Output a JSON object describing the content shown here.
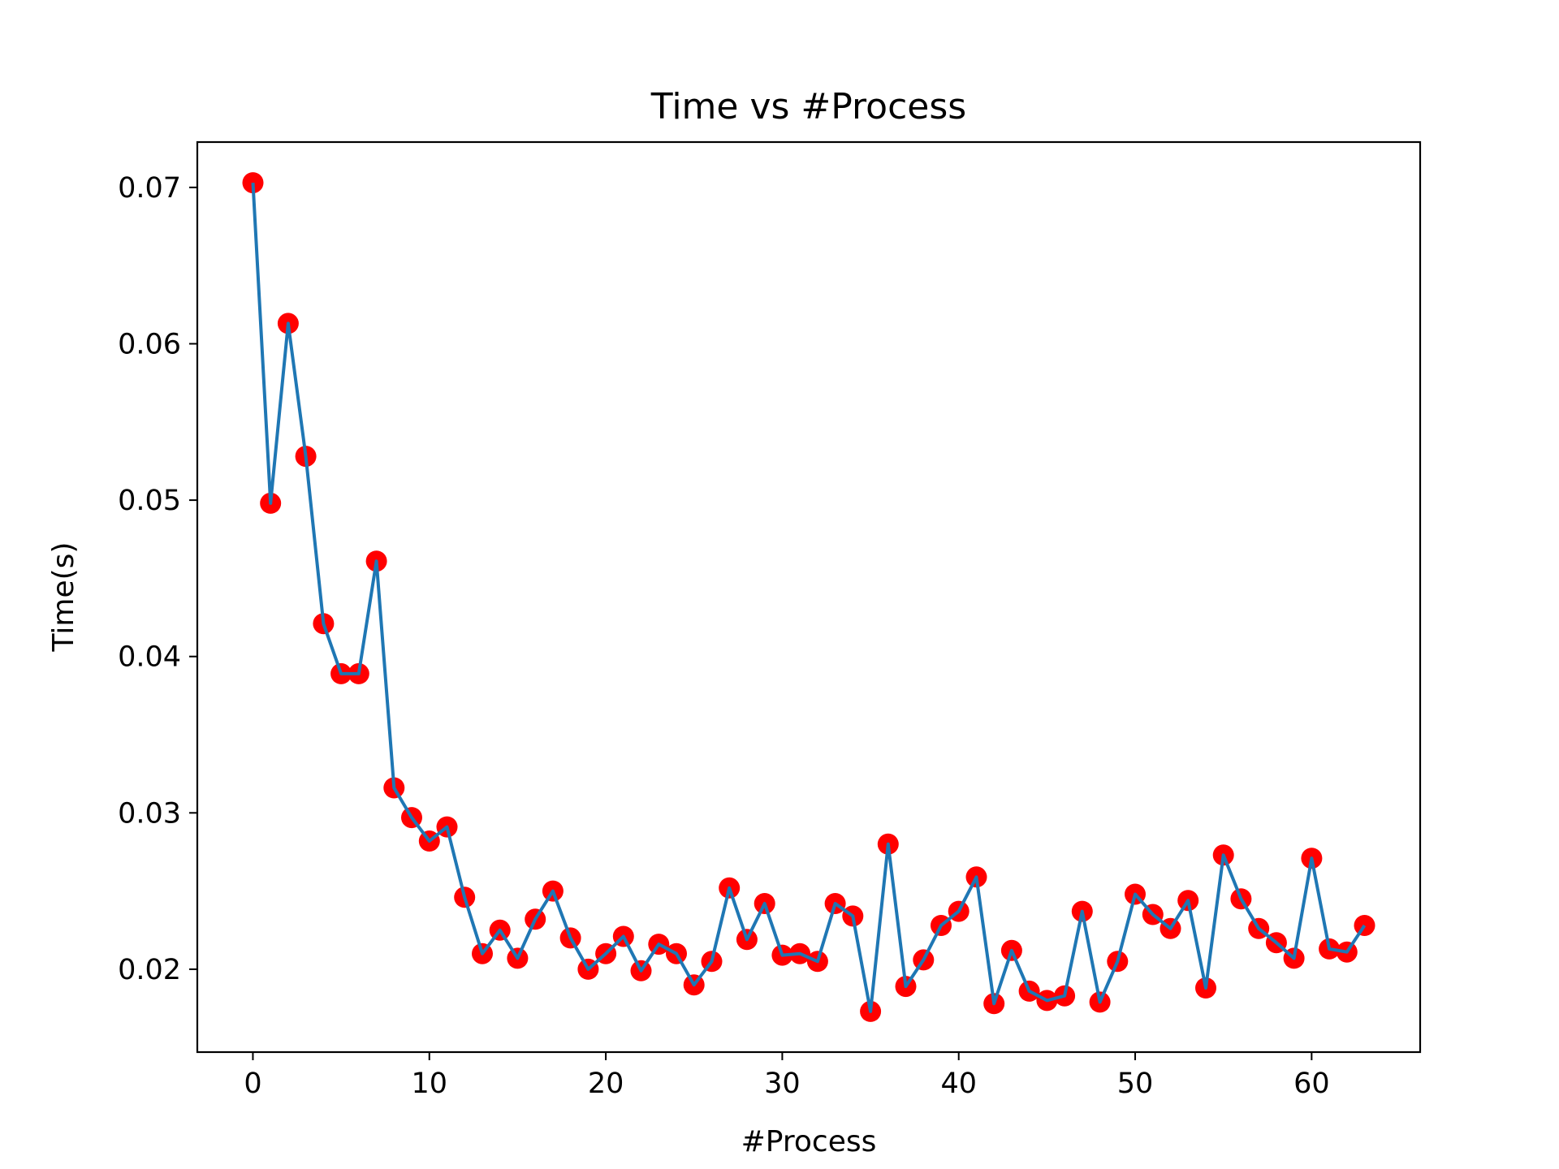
{
  "chart_data": {
    "type": "line",
    "title": "Time vs #Process",
    "xlabel": "#Process",
    "ylabel": "Time(s)",
    "xlim": [
      -3.15,
      66.15
    ],
    "ylim": [
      0.0147,
      0.0729
    ],
    "xticks": [
      0,
      10,
      20,
      30,
      40,
      50,
      60
    ],
    "yticks": [
      0.02,
      0.03,
      0.04,
      0.05,
      0.06,
      0.07
    ],
    "xtick_labels": [
      "0",
      "10",
      "20",
      "30",
      "40",
      "50",
      "60"
    ],
    "ytick_labels": [
      "0.02",
      "0.03",
      "0.04",
      "0.05",
      "0.06",
      "0.07"
    ],
    "grid": false,
    "legend": "none",
    "colors": {
      "line": "#1f77b4",
      "markers": "#ff0000",
      "axes": "#000000"
    },
    "x": [
      0,
      1,
      2,
      3,
      4,
      5,
      6,
      7,
      8,
      9,
      10,
      11,
      12,
      13,
      14,
      15,
      16,
      17,
      18,
      19,
      20,
      21,
      22,
      23,
      24,
      25,
      26,
      27,
      28,
      29,
      30,
      31,
      32,
      33,
      34,
      35,
      36,
      37,
      38,
      39,
      40,
      41,
      42,
      43,
      44,
      45,
      46,
      47,
      48,
      49,
      50,
      51,
      52,
      53,
      54,
      55,
      56,
      57,
      58,
      59,
      60,
      61,
      62,
      63
    ],
    "y": [
      0.0703,
      0.0498,
      0.0613,
      0.0528,
      0.0421,
      0.0389,
      0.0389,
      0.0461,
      0.0316,
      0.0297,
      0.0282,
      0.0291,
      0.0246,
      0.021,
      0.0225,
      0.0207,
      0.0232,
      0.025,
      0.022,
      0.02,
      0.021,
      0.0221,
      0.0199,
      0.0216,
      0.021,
      0.019,
      0.0205,
      0.0252,
      0.0219,
      0.0242,
      0.0209,
      0.021,
      0.0205,
      0.0242,
      0.0234,
      0.0173,
      0.028,
      0.0189,
      0.0206,
      0.0228,
      0.0237,
      0.0259,
      0.0178,
      0.0212,
      0.0186,
      0.018,
      0.0183,
      0.0237,
      0.0179,
      0.0205,
      0.0248,
      0.0235,
      0.0226,
      0.0244,
      0.0188,
      0.0273,
      0.0245,
      0.0226,
      0.0217,
      0.0207,
      0.0271,
      0.0213,
      0.0211,
      0.0228
    ]
  }
}
